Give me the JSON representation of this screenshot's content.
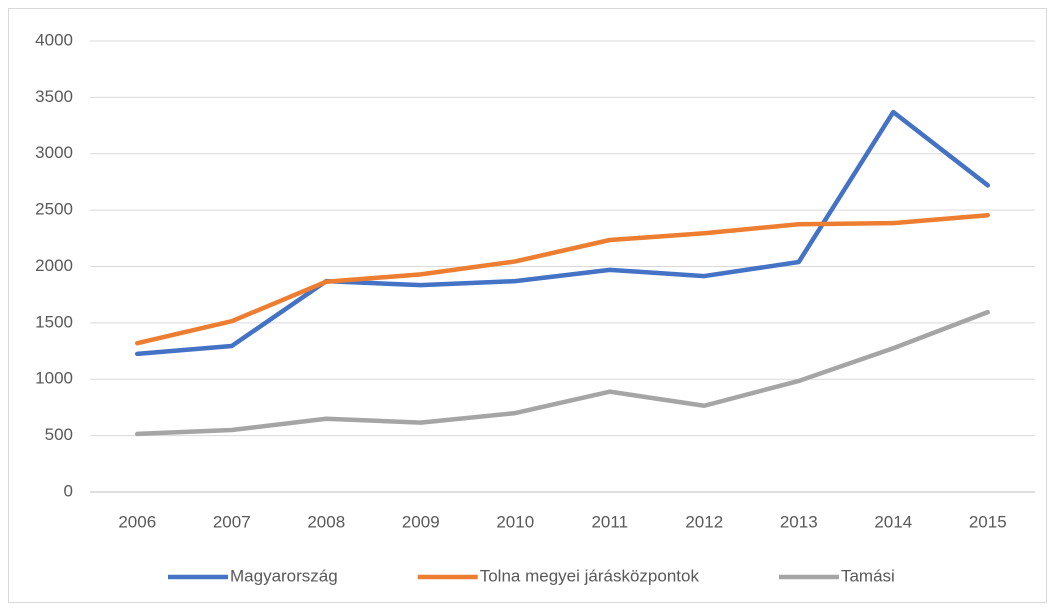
{
  "chart_data": {
    "type": "line",
    "categories": [
      "2006",
      "2007",
      "2008",
      "2009",
      "2010",
      "2011",
      "2012",
      "2013",
      "2014",
      "2015"
    ],
    "series": [
      {
        "name": "Magyarország",
        "color": "#4472c4",
        "values": [
          1225,
          1295,
          1870,
          1835,
          1870,
          1970,
          1915,
          2040,
          3370,
          2720
        ]
      },
      {
        "name": "Tolna megyei járásközpontok",
        "color": "#ed7d31",
        "values": [
          1320,
          1515,
          1865,
          1930,
          2045,
          2235,
          2295,
          2375,
          2385,
          2455
        ]
      },
      {
        "name": "Tamási",
        "color": "#a5a5a5",
        "values": [
          515,
          550,
          650,
          615,
          700,
          890,
          765,
          985,
          1275,
          1595
        ]
      }
    ],
    "ylim": [
      0,
      4000
    ],
    "yticks": [
      0,
      500,
      1000,
      1500,
      2000,
      2500,
      3000,
      3500,
      4000
    ],
    "grid": true,
    "legend": "bottom"
  }
}
